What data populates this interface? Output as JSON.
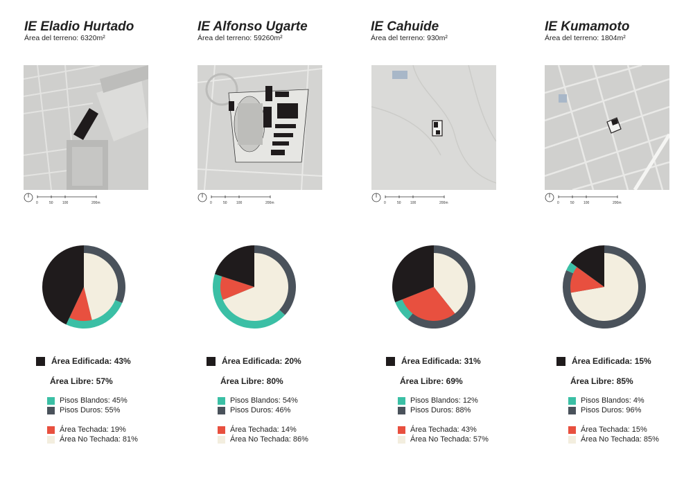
{
  "colors": {
    "edificada": "#1f1b1c",
    "blandos": "#3bbfa5",
    "duros": "#4a525b",
    "techada": "#e8503f",
    "no_techada": "#f3eedf"
  },
  "scale_labels": [
    "0",
    "50",
    "100",
    "200m"
  ],
  "schools": [
    {
      "name": "IE Eladio Hurtado",
      "area": "Área del terreno: 6320m²",
      "edificada": "Área Edificada: 43%",
      "libre": "Área Libre: 57%",
      "blandos": "Pisos Blandos: 45%",
      "duros": "Pisos Duros: 55%",
      "techada": "Área Techada: 19%",
      "no_techada": "Área No Techada: 81%"
    },
    {
      "name": "IE Alfonso Ugarte",
      "area": "Área del terreno: 59260m²",
      "edificada": "Área Edificada: 20%",
      "libre": "Área Libre: 80%",
      "blandos": "Pisos Blandos: 54%",
      "duros": "Pisos Duros: 46%",
      "techada": "Área Techada: 14%",
      "no_techada": "Área No Techada: 86%"
    },
    {
      "name": "IE Cahuide",
      "area": "Área del terreno: 930m²",
      "edificada": "Área Edificada: 31%",
      "libre": "Área Libre: 69%",
      "blandos": "Pisos Blandos: 12%",
      "duros": "Pisos Duros: 88%",
      "techada": "Área Techada: 43%",
      "no_techada": "Área No Techada: 57%"
    },
    {
      "name": "IE Kumamoto",
      "area": "Área del terreno: 1804m²",
      "edificada": "Área Edificada: 15%",
      "libre": "Área Libre: 85%",
      "blandos": "Pisos Blandos: 4%",
      "duros": "Pisos Duros: 96%",
      "techada": "Área Techada: 15%",
      "no_techada": "Área No Techada: 85%"
    }
  ],
  "chart_data": [
    {
      "type": "pie",
      "title": "IE Eladio Hurtado",
      "categories": [
        "Área Edificada",
        "Área Libre"
      ],
      "values": [
        43,
        57
      ],
      "series": [
        {
          "name": "Área Libre",
          "categories": [
            "Pisos Blandos",
            "Pisos Duros"
          ],
          "values": [
            45,
            55
          ]
        },
        {
          "name": "Área Libre",
          "categories": [
            "Área Techada",
            "Área No Techada"
          ],
          "values": [
            19,
            81
          ]
        }
      ]
    },
    {
      "type": "pie",
      "title": "IE Alfonso Ugarte",
      "categories": [
        "Área Edificada",
        "Área Libre"
      ],
      "values": [
        20,
        80
      ],
      "series": [
        {
          "name": "Área Libre",
          "categories": [
            "Pisos Blandos",
            "Pisos Duros"
          ],
          "values": [
            54,
            46
          ]
        },
        {
          "name": "Área Libre",
          "categories": [
            "Área Techada",
            "Área No Techada"
          ],
          "values": [
            14,
            86
          ]
        }
      ]
    },
    {
      "type": "pie",
      "title": "IE Cahuide",
      "categories": [
        "Área Edificada",
        "Área Libre"
      ],
      "values": [
        31,
        69
      ],
      "series": [
        {
          "name": "Área Libre",
          "categories": [
            "Pisos Blandos",
            "Pisos Duros"
          ],
          "values": [
            12,
            88
          ]
        },
        {
          "name": "Área Libre",
          "categories": [
            "Área Techada",
            "Área No Techada"
          ],
          "values": [
            43,
            57
          ]
        }
      ]
    },
    {
      "type": "pie",
      "title": "IE Kumamoto",
      "categories": [
        "Área Edificada",
        "Área Libre"
      ],
      "values": [
        15,
        85
      ],
      "series": [
        {
          "name": "Área Libre",
          "categories": [
            "Pisos Blandos",
            "Pisos Duros"
          ],
          "values": [
            4,
            96
          ]
        },
        {
          "name": "Área Libre",
          "categories": [
            "Área Techada",
            "Área No Techada"
          ],
          "values": [
            15,
            85
          ]
        }
      ]
    }
  ]
}
